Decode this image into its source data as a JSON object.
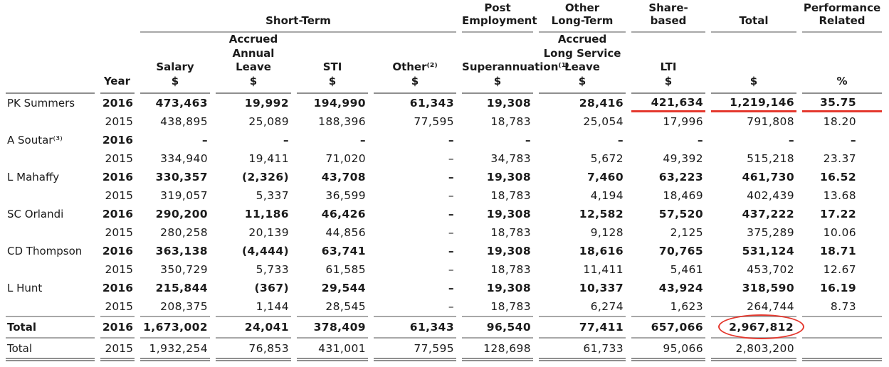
{
  "colors": {
    "red": "#e4382e",
    "line_gray": "#a8a8a8",
    "line_dark": "#8f8f8f",
    "text": "#1b1b1b"
  },
  "table": {
    "groups": {
      "short_term": "Short-Term",
      "post_employment": "Post\nEmployment",
      "other_long_term": "Other\nLong-Term",
      "share_based": "Share-based",
      "total": "Total",
      "performance_related": "Performance\nRelated"
    },
    "columns": {
      "year": "Year",
      "salary": {
        "label": "Salary",
        "unit": "$"
      },
      "accrued_annual_leave": {
        "label": "Accrued\nAnnual Leave",
        "unit": "$"
      },
      "sti": {
        "label": "STI",
        "unit": "$"
      },
      "other": {
        "label": "Other⁽²⁾",
        "unit": "$"
      },
      "superannuation": {
        "label": "Superannuation⁽¹⁾",
        "unit": "$"
      },
      "accrued_long_service_leave": {
        "label": "Accrued\nLong Service\nLeave",
        "unit": "$"
      },
      "lti": {
        "label": "LTI",
        "unit": "$"
      },
      "total": {
        "label": "",
        "unit": "$"
      },
      "performance": {
        "label": "",
        "unit": "%"
      }
    },
    "rows": [
      {
        "name": "PK Summers",
        "year": "2016",
        "bold": true,
        "red_underline": true,
        "values": [
          "473,463",
          "19,992",
          "194,990",
          "61,343",
          "19,308",
          "28,416",
          "421,634",
          "1,219,146",
          "35.75"
        ]
      },
      {
        "name": "",
        "year": "2015",
        "values": [
          "438,895",
          "25,089",
          "188,396",
          "77,595",
          "18,783",
          "25,054",
          "17,996",
          "791,808",
          "18.20"
        ]
      },
      {
        "name": "A Soutar⁽³⁾",
        "year": "2016",
        "bold": true,
        "values": [
          "–",
          "–",
          "–",
          "–",
          "–",
          "–",
          "–",
          "–",
          "–"
        ]
      },
      {
        "name": "",
        "year": "2015",
        "values": [
          "334,940",
          "19,411",
          "71,020",
          "–",
          "34,783",
          "5,672",
          "49,392",
          "515,218",
          "23.37"
        ]
      },
      {
        "name": "L Mahaffy",
        "year": "2016",
        "bold": true,
        "values": [
          "330,357",
          "(2,326)",
          "43,708",
          "–",
          "19,308",
          "7,460",
          "63,223",
          "461,730",
          "16.52"
        ]
      },
      {
        "name": "",
        "year": "2015",
        "values": [
          "319,057",
          "5,337",
          "36,599",
          "–",
          "18,783",
          "4,194",
          "18,469",
          "402,439",
          "13.68"
        ]
      },
      {
        "name": "SC Orlandi",
        "year": "2016",
        "bold": true,
        "values": [
          "290,200",
          "11,186",
          "46,426",
          "–",
          "19,308",
          "12,582",
          "57,520",
          "437,222",
          "17.22"
        ]
      },
      {
        "name": "",
        "year": "2015",
        "values": [
          "280,258",
          "20,139",
          "44,856",
          "–",
          "18,783",
          "9,128",
          "2,125",
          "375,289",
          "10.06"
        ]
      },
      {
        "name": "CD Thompson",
        "year": "2016",
        "bold": true,
        "values": [
          "363,138",
          "(4,444)",
          "63,741",
          "–",
          "19,308",
          "18,616",
          "70,765",
          "531,124",
          "18.71"
        ]
      },
      {
        "name": "",
        "year": "2015",
        "values": [
          "350,729",
          "5,733",
          "61,585",
          "–",
          "18,783",
          "11,411",
          "5,461",
          "453,702",
          "12.67"
        ]
      },
      {
        "name": "L Hunt",
        "year": "2016",
        "bold": true,
        "values": [
          "215,844",
          "(367)",
          "29,544",
          "–",
          "19,308",
          "10,337",
          "43,924",
          "318,590",
          "16.19"
        ]
      },
      {
        "name": "",
        "year": "2015",
        "values": [
          "208,375",
          "1,144",
          "28,545",
          "–",
          "18,783",
          "6,274",
          "1,623",
          "264,744",
          "8.73"
        ]
      },
      {
        "name": "Total",
        "year": "2016",
        "bold": true,
        "classes": [
          "total-first",
          "row-tall"
        ],
        "circle_col": 7,
        "values": [
          "1,673,002",
          "24,041",
          "378,409",
          "61,343",
          "96,540",
          "77,411",
          "657,066",
          "2,967,812",
          ""
        ]
      },
      {
        "name": "Total",
        "year": "2015",
        "classes": [
          "total-last",
          "row-tall"
        ],
        "values": [
          "1,932,254",
          "76,853",
          "431,001",
          "77,595",
          "128,698",
          "61,733",
          "95,066",
          "2,803,200",
          ""
        ]
      }
    ]
  },
  "annotations": {
    "red_underline_row": "PK Summers 2016 — LTI, Total and % values underlined in red",
    "red_circled_value": "2,967,812"
  }
}
